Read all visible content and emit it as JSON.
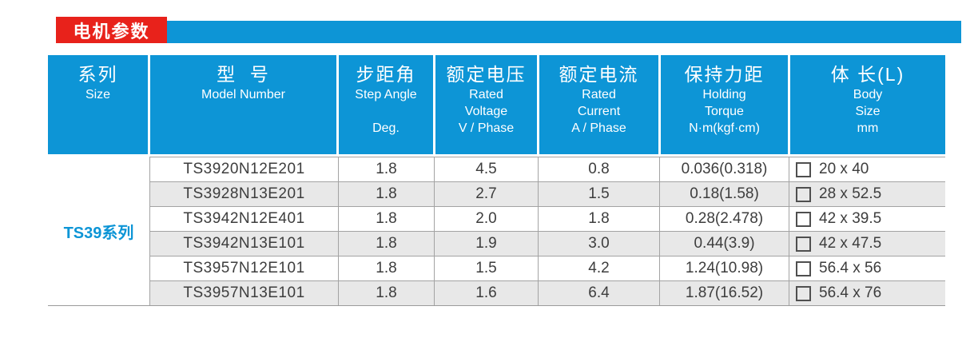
{
  "title": {
    "label": "电机参数"
  },
  "colors": {
    "blue": "#0d95d6",
    "red": "#e8221b",
    "row_alt": "#e8e8e8",
    "grid_line": "#a3a3a3",
    "text": "#3d3d3d"
  },
  "table": {
    "columns": [
      {
        "zh": "系列",
        "en1": "Size",
        "en2": "",
        "unit": ""
      },
      {
        "zh": "型  号",
        "en1": "Model Number",
        "en2": "",
        "unit": ""
      },
      {
        "zh": "步距角",
        "en1": "Step Angle",
        "en2": "",
        "unit": "Deg."
      },
      {
        "zh": "额定电压",
        "en1": "Rated",
        "en2": "Voltage",
        "unit": "V / Phase"
      },
      {
        "zh": "额定电流",
        "en1": "Rated",
        "en2": "Current",
        "unit": "A / Phase"
      },
      {
        "zh": "保持力距",
        "en1": "Holding",
        "en2": "Torque",
        "unit": "N·m(kgf·cm)"
      },
      {
        "zh": "体 长(L)",
        "en1": "Body",
        "en2": "Size",
        "unit": "mm"
      }
    ],
    "series_label": "TS39系列",
    "rows": [
      {
        "model": "TS3920N12E201",
        "step_angle": "1.8",
        "voltage": "4.5",
        "current": "0.8",
        "torque": "0.036(0.318)",
        "body": "20 x 40"
      },
      {
        "model": "TS3928N13E201",
        "step_angle": "1.8",
        "voltage": "2.7",
        "current": "1.5",
        "torque": "0.18(1.58)",
        "body": "28 x 52.5"
      },
      {
        "model": "TS3942N12E401",
        "step_angle": "1.8",
        "voltage": "2.0",
        "current": "1.8",
        "torque": "0.28(2.478)",
        "body": "42 x 39.5"
      },
      {
        "model": "TS3942N13E101",
        "step_angle": "1.8",
        "voltage": "1.9",
        "current": "3.0",
        "torque": "0.44(3.9)",
        "body": "42 x 47.5"
      },
      {
        "model": "TS3957N12E101",
        "step_angle": "1.8",
        "voltage": "1.5",
        "current": "4.2",
        "torque": "1.24(10.98)",
        "body": "56.4 x 56"
      },
      {
        "model": "TS3957N13E101",
        "step_angle": "1.8",
        "voltage": "1.6",
        "current": "6.4",
        "torque": "1.87(16.52)",
        "body": "56.4 x 76"
      }
    ]
  }
}
